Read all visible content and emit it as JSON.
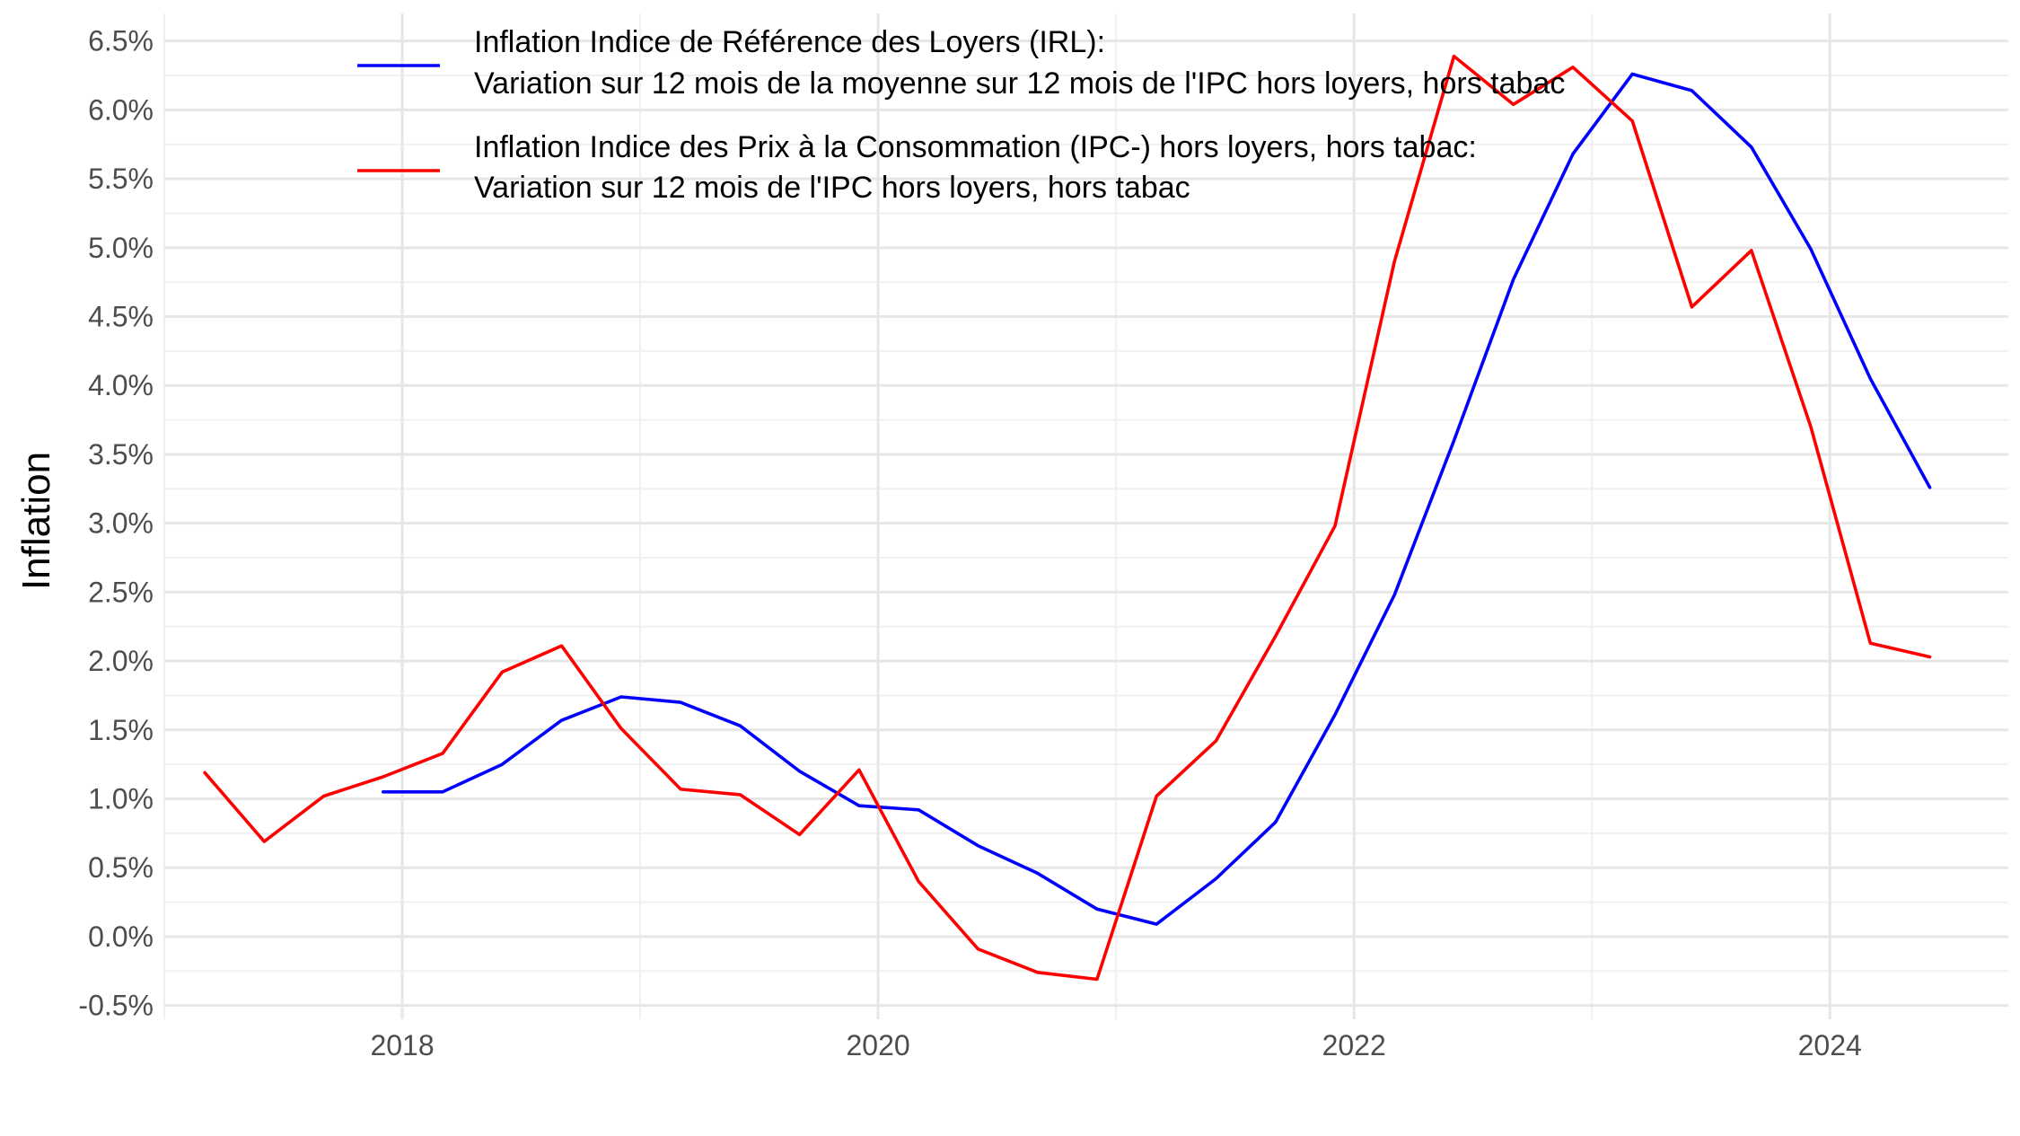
{
  "chart_data": {
    "type": "line",
    "title": "",
    "xlabel": "",
    "ylabel": "Inflation",
    "xlim": [
      2017.0,
      2024.75
    ],
    "ylim": [
      -0.6,
      6.7
    ],
    "x_ticks": [
      2018,
      2020,
      2022,
      2024
    ],
    "y_ticks": [
      -0.5,
      0.0,
      0.5,
      1.0,
      1.5,
      2.0,
      2.5,
      3.0,
      3.5,
      4.0,
      4.5,
      5.0,
      5.5,
      6.0,
      6.5
    ],
    "y_tick_labels": [
      "-0.5%",
      "0.0%",
      "0.5%",
      "1.0%",
      "1.5%",
      "2.0%",
      "2.5%",
      "3.0%",
      "3.5%",
      "4.0%",
      "4.5%",
      "5.0%",
      "5.5%",
      "6.0%",
      "6.5%"
    ],
    "grid": true,
    "legend_position": "top",
    "series": [
      {
        "name": "Inflation Indice de Référence des Loyers (IRL):",
        "name_line2": "Variation sur 12 mois de la moyenne sur 12 mois de l'IPC hors loyers, hors tabac",
        "color": "#0000ff",
        "x": [
          2017.92,
          2018.17,
          2018.42,
          2018.67,
          2018.92,
          2019.17,
          2019.42,
          2019.67,
          2019.92,
          2020.17,
          2020.42,
          2020.67,
          2020.92,
          2021.17,
          2021.42,
          2021.67,
          2021.92,
          2022.17,
          2022.42,
          2022.67,
          2022.92,
          2023.17,
          2023.42,
          2023.67,
          2023.92,
          2024.17,
          2024.42
        ],
        "values": [
          1.05,
          1.05,
          1.25,
          1.57,
          1.74,
          1.7,
          1.53,
          1.2,
          0.95,
          0.92,
          0.66,
          0.46,
          0.2,
          0.09,
          0.42,
          0.83,
          1.61,
          2.48,
          3.6,
          4.77,
          5.68,
          6.26,
          6.14,
          5.73,
          4.99,
          4.05,
          3.26
        ]
      },
      {
        "name": "Inflation Indice des Prix à la Consommation (IPC-) hors loyers, hors tabac:",
        "name_line2": "Variation sur 12 mois de l'IPC hors loyers, hors tabac",
        "color": "#ff0000",
        "x": [
          2017.17,
          2017.42,
          2017.67,
          2017.92,
          2018.17,
          2018.42,
          2018.67,
          2018.92,
          2019.17,
          2019.42,
          2019.67,
          2019.92,
          2020.17,
          2020.42,
          2020.67,
          2020.92,
          2021.17,
          2021.42,
          2021.67,
          2021.92,
          2022.17,
          2022.42,
          2022.67,
          2022.92,
          2023.17,
          2023.42,
          2023.67,
          2023.92,
          2024.17,
          2024.42
        ],
        "values": [
          1.19,
          0.69,
          1.02,
          1.16,
          1.33,
          1.92,
          2.11,
          1.51,
          1.07,
          1.03,
          0.74,
          1.21,
          0.4,
          -0.09,
          -0.26,
          -0.31,
          1.02,
          1.42,
          2.18,
          2.98,
          4.9,
          6.39,
          6.04,
          6.31,
          5.92,
          4.57,
          4.98,
          3.7,
          2.13,
          2.03
        ]
      }
    ]
  }
}
